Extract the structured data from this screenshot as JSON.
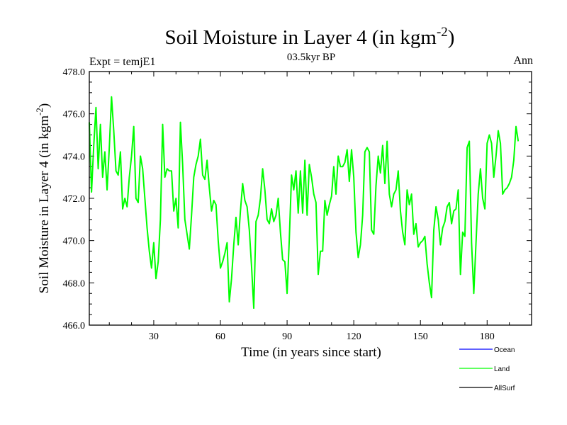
{
  "chart_data": {
    "type": "line",
    "title": "Soil Moisture in Layer 4 (in kgm",
    "title_sup": "-2",
    "title_close": ")",
    "subtitle": "03.5kyr BP",
    "left_label": "Expt = temjE1",
    "right_label": "Ann",
    "xlabel": "Time (in years since start)",
    "ylabel": "Soil Moisture in Layer 4 (in kgm",
    "ylabel_sup": "-2",
    "ylabel_close": ")",
    "xlim": [
      1,
      200
    ],
    "ylim": [
      466,
      478
    ],
    "xticks": [
      30,
      60,
      90,
      120,
      150,
      180
    ],
    "xtick_labels": [
      "30",
      "60",
      "90",
      "120",
      "150",
      "180"
    ],
    "yticks": [
      466,
      468,
      470,
      472,
      474,
      476,
      478
    ],
    "ytick_labels": [
      "466.0",
      "468.0",
      "470.0",
      "472.0",
      "474.0",
      "476.0",
      "478.0"
    ],
    "legend_position": "bottom-right",
    "legend": [
      {
        "name": "Ocean",
        "color": "#0000ff"
      },
      {
        "name": "Land",
        "color": "#00ff00"
      },
      {
        "name": "AllSurf",
        "color": "#000000"
      }
    ],
    "series": [
      {
        "name": "Land",
        "color": "#00ff00",
        "x_start": 1,
        "x_step": 1,
        "values": [
          475.6,
          472.3,
          474.5,
          476.3,
          473.4,
          475.5,
          473.0,
          474.2,
          472.4,
          474.4,
          476.8,
          475.2,
          473.3,
          473.1,
          474.2,
          471.5,
          472.0,
          471.6,
          473.0,
          474.0,
          475.4,
          472.0,
          471.8,
          474.0,
          473.4,
          472.0,
          470.6,
          469.5,
          468.7,
          469.9,
          468.2,
          469.0,
          471.0,
          475.5,
          473.0,
          473.4,
          473.3,
          473.3,
          471.4,
          472.0,
          470.6,
          475.6,
          473.6,
          471.0,
          470.3,
          469.6,
          471.2,
          473.0,
          473.6,
          474.0,
          474.8,
          473.1,
          472.9,
          473.8,
          472.5,
          471.4,
          471.9,
          471.7,
          470.0,
          468.7,
          469.0,
          469.4,
          469.9,
          467.1,
          468.2,
          469.8,
          471.1,
          469.8,
          471.4,
          472.7,
          471.9,
          471.6,
          470.5,
          468.8,
          466.8,
          470.9,
          471.2,
          472.0,
          473.4,
          472.4,
          471.0,
          470.8,
          471.5,
          470.9,
          471.2,
          472.0,
          470.4,
          469.1,
          469.0,
          467.5,
          470.1,
          473.1,
          472.4,
          473.3,
          471.3,
          473.3,
          471.3,
          473.8,
          471.2,
          473.6,
          473.0,
          472.2,
          471.8,
          468.4,
          469.5,
          469.5,
          471.9,
          471.2,
          471.7,
          472.1,
          473.5,
          472.2,
          474.0,
          473.5,
          473.5,
          473.7,
          474.3,
          472.8,
          474.3,
          473.0,
          470.4,
          469.2,
          469.8,
          471.2,
          474.2,
          474.4,
          474.2,
          470.5,
          470.3,
          472.6,
          474.0,
          473.2,
          474.5,
          472.7,
          474.7,
          472.2,
          471.6,
          472.2,
          472.4,
          473.3,
          471.4,
          470.4,
          469.8,
          472.4,
          471.7,
          472.2,
          470.3,
          470.8,
          469.7,
          469.9,
          470.0,
          470.2,
          468.9,
          468.0,
          467.3,
          470.5,
          471.6,
          471.0,
          469.8,
          470.6,
          470.9,
          471.6,
          471.8,
          470.8,
          471.4,
          471.5,
          472.4,
          468.4,
          470.4,
          470.2,
          474.4,
          474.7,
          469.9,
          467.5,
          469.9,
          472.2,
          473.4,
          472.0,
          471.5,
          474.6,
          475.0,
          474.6,
          473.0,
          474.0,
          475.2,
          474.6,
          472.2,
          472.4,
          472.5,
          472.7,
          473.0,
          473.8,
          475.4,
          474.7
        ]
      }
    ]
  }
}
